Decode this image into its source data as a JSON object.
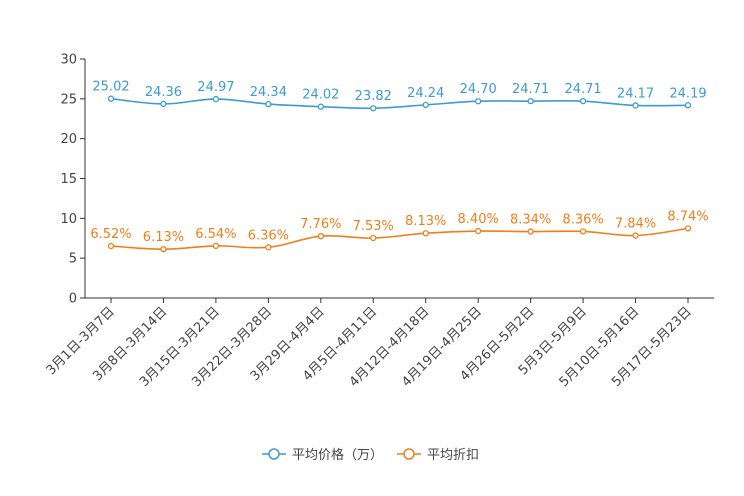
{
  "chart_data": {
    "type": "line",
    "title": "",
    "xlabel": "",
    "ylabel": "",
    "ylim": [
      0,
      30
    ],
    "yticks": [
      0,
      5,
      10,
      15,
      20,
      25,
      30
    ],
    "categories": [
      "3月1日-3月7日",
      "3月8日-3月14日",
      "3月15日-3月21日",
      "3月22日-3月28日",
      "3月29日-4月4日",
      "4月5日-4月11日",
      "4月12日-4月18日",
      "4月19日-4月25日",
      "4月26日-5月2日",
      "5月3日-5月9日",
      "5月10日-5月16日",
      "5月17日-5月23日"
    ],
    "series": [
      {
        "name": "平均价格（万）",
        "color": "#3d9bd1",
        "values": [
          25.02,
          24.36,
          24.97,
          24.34,
          24.02,
          23.82,
          24.24,
          24.7,
          24.71,
          24.71,
          24.17,
          24.19
        ],
        "labels": [
          "25.02",
          "24.36",
          "24.97",
          "24.34",
          "24.02",
          "23.82",
          "24.24",
          "24.70",
          "24.71",
          "24.71",
          "24.17",
          "24.19"
        ]
      },
      {
        "name": "平均折扣",
        "color": "#f07f1a",
        "values": [
          6.52,
          6.13,
          6.54,
          6.36,
          7.76,
          7.53,
          8.13,
          8.4,
          8.34,
          8.36,
          7.84,
          8.74
        ],
        "labels": [
          "6.52%",
          "6.13%",
          "6.54%",
          "6.36%",
          "7.76%",
          "7.53%",
          "8.13%",
          "8.40%",
          "8.34%",
          "8.36%",
          "7.84%",
          "8.74%"
        ]
      }
    ],
    "legend_position": "bottom-center",
    "grid": false
  }
}
